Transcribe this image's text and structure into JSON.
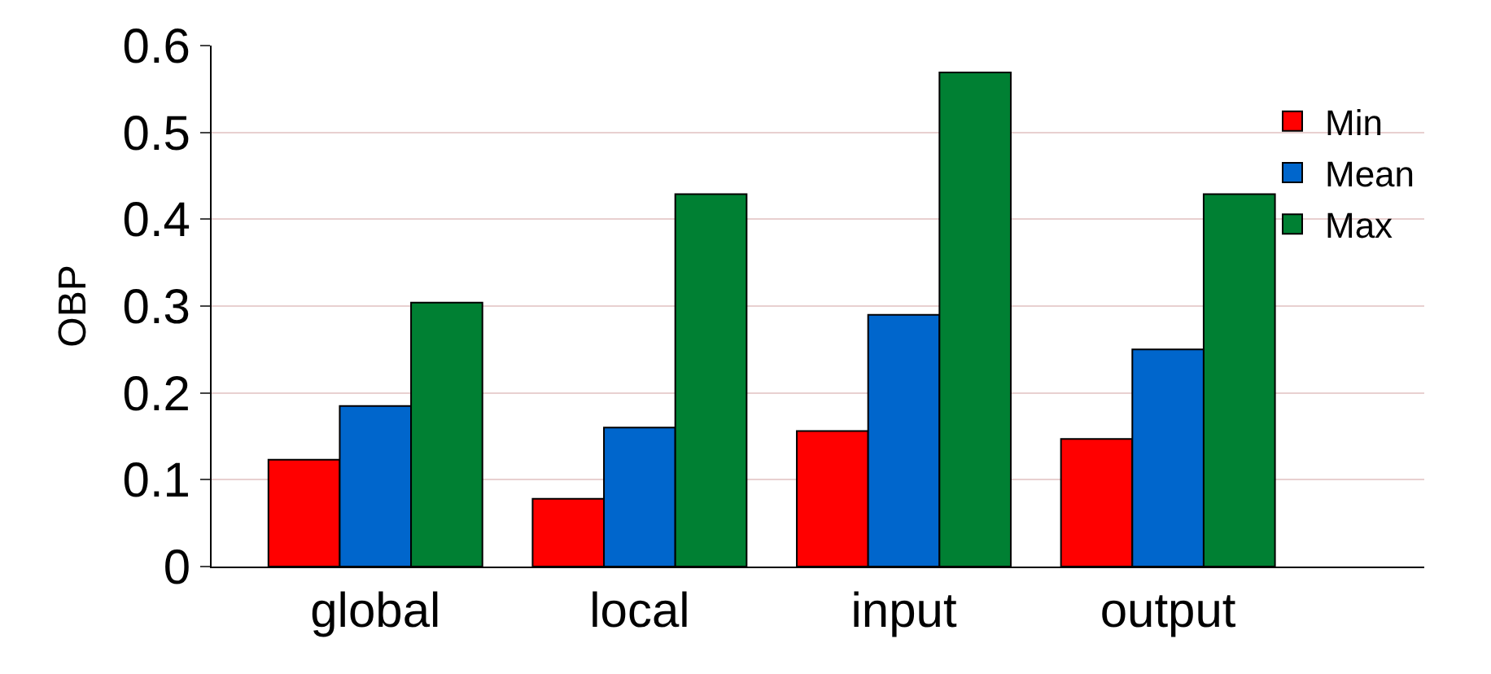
{
  "chart_data": {
    "type": "bar",
    "ylabel": "OBP",
    "categories": [
      "global",
      "local",
      "input",
      "output"
    ],
    "series": [
      {
        "name": "Min",
        "color": "#ff0000",
        "values": [
          0.123,
          0.078,
          0.156,
          0.147
        ]
      },
      {
        "name": "Mean",
        "color": "#0066cc",
        "values": [
          0.185,
          0.16,
          0.29,
          0.25
        ]
      },
      {
        "name": "Max",
        "color": "#008033",
        "values": [
          0.304,
          0.429,
          0.569,
          0.429
        ]
      }
    ],
    "ylim": [
      0,
      0.6
    ],
    "yticks": [
      0,
      0.1,
      0.2,
      0.3,
      0.4,
      0.5,
      0.6
    ],
    "grid": "y",
    "legend": "top right"
  }
}
